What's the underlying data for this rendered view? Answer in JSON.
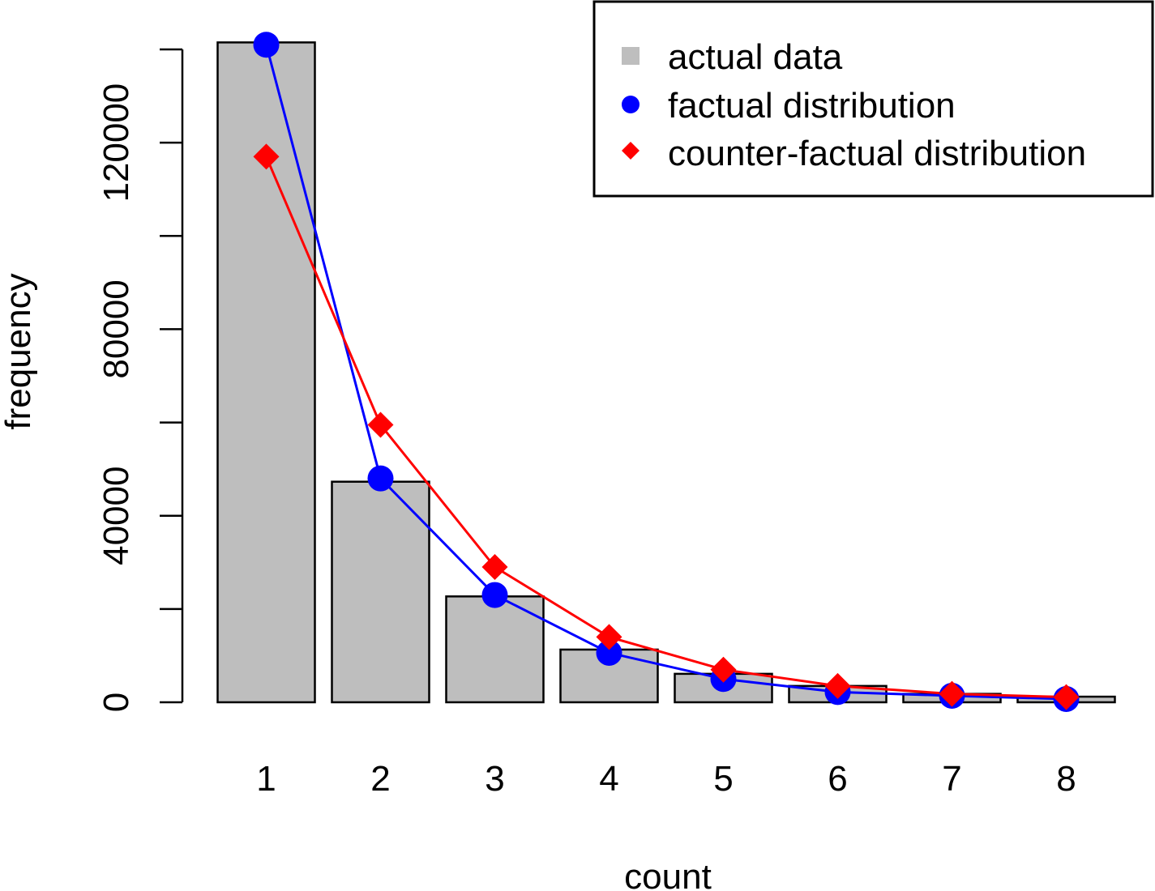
{
  "colors": {
    "bar_fill": "#bebebe",
    "bar_stroke": "#000000",
    "factual": "#0000ff",
    "counterfactual": "#ff0000",
    "axis": "#000000"
  },
  "chart_data": {
    "type": "bar",
    "categories": [
      "1",
      "2",
      "3",
      "4",
      "5",
      "6",
      "7",
      "8"
    ],
    "xlabel": "count",
    "ylabel": "frequency",
    "ylim": [
      0,
      140000
    ],
    "yticks": [
      0,
      20000,
      40000,
      60000,
      80000,
      100000,
      120000,
      140000
    ],
    "ytick_labels": [
      "0",
      "",
      "40000",
      "",
      "80000",
      "",
      "120000",
      ""
    ],
    "bars": {
      "name": "actual data",
      "values": [
        141500,
        47300,
        22700,
        11300,
        6100,
        3500,
        1800,
        1200
      ]
    },
    "series": [
      {
        "name": "factual distribution",
        "type": "line",
        "marker": "circle",
        "color": "#0000ff",
        "values": [
          141000,
          48000,
          23000,
          10600,
          5000,
          2200,
          1400,
          700
        ]
      },
      {
        "name": "counter-factual distribution",
        "type": "line",
        "marker": "diamond",
        "color": "#ff0000",
        "values": [
          117000,
          59500,
          29000,
          14000,
          7000,
          3500,
          1800,
          1100
        ]
      }
    ],
    "legend": {
      "position": "top-right",
      "entries": [
        "actual data",
        "factual distribution",
        "counter-factual distribution"
      ]
    },
    "grid": false
  }
}
